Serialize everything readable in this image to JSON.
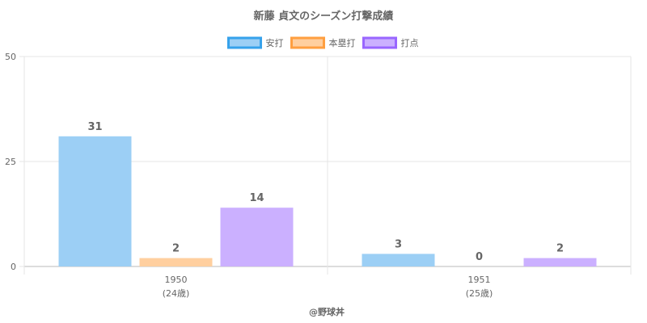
{
  "chart_data": {
    "type": "bar",
    "title": "新藤 貞文のシーズン打撃成績",
    "categories": [
      {
        "label": "1950",
        "sublabel": "(24歳)"
      },
      {
        "label": "1951",
        "sublabel": "(25歳)"
      }
    ],
    "series": [
      {
        "name": "安打",
        "values": [
          31,
          3
        ],
        "fill": "#9ccff5",
        "stroke": "#36a2eb"
      },
      {
        "name": "本塁打",
        "values": [
          2,
          0
        ],
        "fill": "#ffcf9f",
        "stroke": "#ff9f40"
      },
      {
        "name": "打点",
        "values": [
          14,
          2
        ],
        "fill": "#cbb0ff",
        "stroke": "#9966ff"
      }
    ],
    "ylim": [
      0,
      50
    ],
    "yticks": [
      0,
      25,
      50
    ],
    "grid": true,
    "legend_position": "top"
  },
  "credit": "@野球丼"
}
